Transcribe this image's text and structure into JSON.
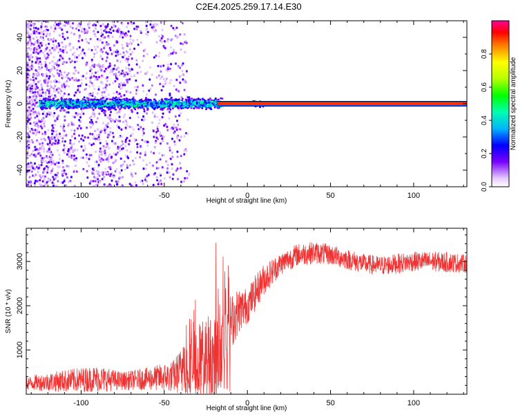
{
  "title": "C2E4.2025.259.17.14.E30",
  "chart_data": [
    {
      "type": "heatmap",
      "name": "spectrogram",
      "xlabel": "Height of straight line (km)",
      "ylabel": "Frequency (Hz)",
      "xlim": [
        -133,
        132
      ],
      "ylim": [
        -50,
        50
      ],
      "xticks": [
        -100,
        -50,
        0,
        50,
        100
      ],
      "yticks": [
        -40,
        -20,
        0,
        20,
        40
      ],
      "xtick_labels": [
        "-100",
        "-50",
        "0",
        "50",
        "100"
      ],
      "ytick_labels": [
        "-40",
        "-20",
        "0",
        "20",
        "40"
      ],
      "colorbar": {
        "label": "Normalized spectral amplitude",
        "range": [
          0,
          1
        ],
        "ticks": [
          0.0,
          0.2,
          0.4,
          0.6,
          0.8
        ],
        "tick_labels": [
          "0.0",
          "0.2",
          "0.4",
          "0.6",
          "0.8"
        ]
      },
      "features": {
        "carrier_line_freq_hz": 0,
        "carrier_line_x_start_km": -18,
        "carrier_band_halfwidth_hz": 1.5,
        "core_band_start_km": -120,
        "core_band_end_km": -15,
        "scatter_region_end_km": -45,
        "core_amplitude_range": [
          0.2,
          0.5
        ],
        "line_amplitude": 0.9
      }
    },
    {
      "type": "line",
      "name": "snr",
      "xlabel": "Height of straight line (km)",
      "ylabel": "SNR (10 * v/v)",
      "xlim": [
        -133,
        132
      ],
      "ylim": [
        0,
        3750
      ],
      "xticks": [
        -100,
        -50,
        0,
        50,
        100
      ],
      "yticks": [
        1000,
        2000,
        3000
      ],
      "xtick_labels": [
        "-100",
        "-50",
        "0",
        "50",
        "100"
      ],
      "ytick_labels": [
        "1000",
        "2000",
        "3000"
      ],
      "color": "#f03232",
      "series": [
        {
          "name": "SNR",
          "envelope_x": [
            -133,
            -110,
            -90,
            -75,
            -60,
            -45,
            -35,
            -25,
            -18,
            -12,
            -5,
            0,
            5,
            10,
            20,
            30,
            40,
            50,
            60,
            70,
            80,
            90,
            100,
            110,
            120,
            132
          ],
          "envelope_mean": [
            250,
            300,
            350,
            300,
            350,
            400,
            650,
            800,
            900,
            1500,
            1900,
            2000,
            2300,
            2600,
            2950,
            3150,
            3200,
            3150,
            3050,
            2950,
            2900,
            2950,
            3000,
            3000,
            2980,
            2950
          ],
          "envelope_spread": [
            150,
            250,
            300,
            200,
            250,
            350,
            700,
            1000,
            1100,
            700,
            500,
            400,
            400,
            350,
            250,
            250,
            250,
            230,
            230,
            220,
            220,
            220,
            220,
            220,
            230,
            200
          ]
        }
      ]
    }
  ]
}
